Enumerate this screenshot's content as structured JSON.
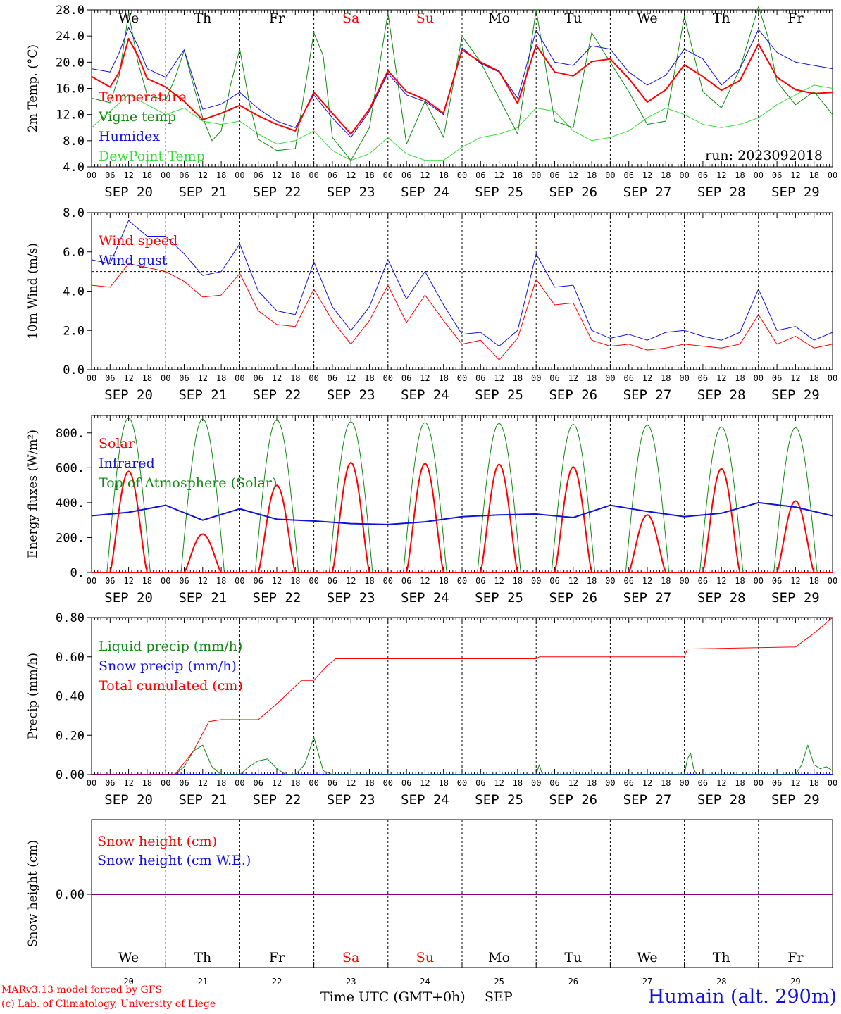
{
  "footer": {
    "credit_line1": "MARv3.13 model forced by GFS",
    "credit_line2": "(c) Lab. of Climatology, University of Liege",
    "time_label": "Time UTC (GMT+0h)",
    "month_label": "SEP",
    "station": "Humain (alt. 290m)"
  },
  "colors": {
    "red": "#ff0000",
    "dark_green": "#118811",
    "blue": "#1111dd",
    "light_green": "#33dd33",
    "purple": "#800080"
  },
  "time_axis": {
    "hour_ticks": [
      "00",
      "06",
      "12",
      "18"
    ],
    "date_labels": [
      "SEP 20",
      "SEP 21",
      "SEP 22",
      "SEP 23",
      "SEP 24",
      "SEP 25",
      "SEP 26",
      "SEP 27",
      "SEP 28",
      "SEP 29"
    ],
    "weekdays": [
      "We",
      "Th",
      "Fr",
      "Sa",
      "Su",
      "Mo",
      "Tu",
      "We",
      "Th",
      "Fr"
    ],
    "weekend_days": [
      3,
      4
    ],
    "day_numbers": [
      "20",
      "21",
      "22",
      "23",
      "24",
      "25",
      "26",
      "27",
      "28",
      "29"
    ]
  },
  "chart_data": [
    {
      "type": "line",
      "panel": "temperature",
      "ylabel": "2m Temp. (°C)",
      "ylim": [
        4,
        28
      ],
      "yticks": [
        "4.0",
        "8.0",
        "12.0",
        "16.0",
        "20.0",
        "24.0",
        "28.0"
      ],
      "run_label": "run: 2023092018",
      "x_unit": "hours since SEP 20 00 UTC",
      "series": [
        {
          "name": "Temperature",
          "color": "#ff0000",
          "width": 2,
          "x": [
            0,
            6,
            9,
            12,
            15,
            18,
            24,
            30,
            36,
            42,
            48,
            54,
            60,
            66,
            72,
            78,
            84,
            90,
            96,
            102,
            108,
            114,
            120,
            126,
            132,
            138,
            144,
            150,
            156,
            162,
            168,
            174,
            180,
            186,
            192,
            198,
            204,
            210,
            216,
            222,
            228,
            234,
            240
          ],
          "y": [
            17.8,
            16.2,
            18.5,
            23.6,
            21.0,
            17.5,
            16.2,
            14.0,
            11.2,
            12.2,
            13.4,
            11.8,
            10.5,
            9.5,
            15.4,
            12.2,
            9.0,
            12.8,
            18.7,
            15.5,
            14.3,
            12.2,
            21.9,
            20.0,
            18.6,
            13.7,
            22.6,
            18.5,
            17.9,
            20.1,
            20.5,
            17.5,
            13.9,
            15.8,
            19.6,
            17.8,
            15.7,
            17.2,
            22.8,
            17.7,
            15.8,
            15.2,
            15.4
          ]
        },
        {
          "name": "Vigne temp",
          "color": "#118811",
          "width": 1,
          "x": [
            0,
            6,
            9,
            12,
            15,
            18,
            24,
            27,
            30,
            33,
            36,
            39,
            42,
            45,
            48,
            51,
            54,
            60,
            66,
            72,
            75,
            78,
            84,
            90,
            96,
            102,
            108,
            114,
            120,
            126,
            132,
            138,
            144,
            150,
            156,
            162,
            168,
            174,
            180,
            186,
            192,
            198,
            204,
            210,
            216,
            219,
            222,
            228,
            234,
            240
          ],
          "y": [
            14.5,
            13.8,
            18.0,
            27.5,
            20.0,
            15.0,
            14.2,
            17.5,
            21.8,
            16.5,
            11.5,
            8.0,
            9.5,
            16.5,
            22.0,
            14.0,
            8.2,
            6.5,
            6.8,
            24.5,
            21.0,
            8.5,
            5.0,
            10.0,
            27.5,
            7.5,
            14.0,
            8.5,
            24.0,
            20.0,
            14.5,
            9.0,
            28.0,
            11.0,
            10.0,
            24.5,
            20.0,
            15.5,
            10.5,
            11.0,
            27.0,
            15.5,
            13.0,
            19.0,
            28.5,
            24.0,
            17.0,
            13.5,
            15.5,
            12.0
          ]
        },
        {
          "name": "Humidex",
          "color": "#1111dd",
          "width": 1,
          "x": [
            0,
            6,
            9,
            12,
            15,
            18,
            24,
            30,
            36,
            42,
            48,
            54,
            60,
            66,
            72,
            78,
            84,
            90,
            96,
            102,
            108,
            114,
            120,
            126,
            132,
            138,
            144,
            150,
            156,
            162,
            168,
            174,
            180,
            186,
            192,
            198,
            204,
            210,
            216,
            222,
            228,
            234,
            240
          ],
          "y": [
            19.0,
            18.5,
            21.5,
            25.3,
            22.5,
            19.0,
            17.7,
            21.9,
            12.8,
            13.6,
            15.4,
            12.9,
            11.0,
            10.0,
            15.0,
            11.5,
            8.5,
            12.5,
            18.3,
            15.0,
            14.0,
            12.0,
            22.2,
            19.8,
            18.5,
            14.5,
            24.9,
            20.0,
            19.5,
            22.5,
            22.0,
            18.5,
            16.5,
            18.0,
            22.0,
            20.5,
            16.5,
            19.0,
            25.0,
            21.5,
            20.0,
            19.5,
            19.0
          ]
        },
        {
          "name": "DewPoint Temp",
          "color": "#33dd33",
          "width": 1,
          "x": [
            0,
            6,
            12,
            18,
            24,
            30,
            36,
            42,
            48,
            54,
            60,
            66,
            72,
            78,
            84,
            90,
            96,
            102,
            108,
            114,
            120,
            126,
            132,
            138,
            144,
            150,
            156,
            162,
            168,
            174,
            180,
            186,
            192,
            198,
            204,
            210,
            216,
            222,
            228,
            234,
            240
          ],
          "y": [
            10.0,
            12.5,
            15.0,
            13.5,
            12.0,
            13.0,
            11.0,
            10.5,
            11.0,
            9.0,
            7.5,
            8.0,
            9.5,
            6.5,
            5.0,
            6.0,
            8.5,
            6.0,
            5.0,
            5.0,
            7.0,
            8.5,
            9.0,
            10.0,
            13.0,
            12.5,
            9.5,
            8.0,
            8.5,
            9.5,
            11.5,
            13.0,
            12.0,
            10.5,
            10.0,
            10.5,
            11.5,
            13.5,
            15.0,
            16.5,
            16.0
          ]
        }
      ]
    },
    {
      "type": "line",
      "panel": "wind",
      "ylabel": "10m Wind (m/s)",
      "ylim": [
        0,
        8
      ],
      "yticks": [
        "0.0",
        "2.0",
        "4.0",
        "6.0",
        "8.0"
      ],
      "reference_line": 5,
      "x_unit": "hours since SEP 20 00 UTC",
      "series": [
        {
          "name": "Wind speed",
          "color": "#ff0000",
          "width": 1,
          "x": [
            0,
            6,
            12,
            18,
            24,
            30,
            36,
            42,
            48,
            54,
            60,
            66,
            72,
            78,
            84,
            90,
            96,
            102,
            108,
            114,
            120,
            126,
            132,
            138,
            144,
            150,
            156,
            162,
            168,
            174,
            180,
            186,
            192,
            198,
            204,
            210,
            216,
            222,
            228,
            234,
            240
          ],
          "y": [
            4.3,
            4.2,
            5.4,
            5.2,
            5.0,
            4.5,
            3.7,
            3.8,
            4.9,
            3.0,
            2.3,
            2.2,
            4.1,
            2.5,
            1.3,
            2.5,
            4.3,
            2.4,
            3.8,
            2.5,
            1.3,
            1.5,
            0.5,
            1.6,
            4.6,
            3.3,
            3.4,
            1.5,
            1.2,
            1.3,
            1.0,
            1.1,
            1.3,
            1.2,
            1.1,
            1.3,
            2.8,
            1.3,
            1.7,
            1.1,
            1.3
          ]
        },
        {
          "name": "Wind gust",
          "color": "#1111dd",
          "width": 1,
          "x": [
            0,
            6,
            12,
            18,
            24,
            30,
            36,
            42,
            48,
            54,
            60,
            66,
            72,
            78,
            84,
            90,
            96,
            102,
            108,
            114,
            120,
            126,
            132,
            138,
            144,
            150,
            156,
            162,
            168,
            174,
            180,
            186,
            192,
            198,
            204,
            210,
            216,
            222,
            228,
            234,
            240
          ],
          "y": [
            5.6,
            5.4,
            7.6,
            6.8,
            6.8,
            5.9,
            4.8,
            5.0,
            6.4,
            4.0,
            3.0,
            2.8,
            5.5,
            3.2,
            2.0,
            3.2,
            5.6,
            3.6,
            5.0,
            3.3,
            1.8,
            1.9,
            1.2,
            2.0,
            5.9,
            4.2,
            4.3,
            2.0,
            1.6,
            1.8,
            1.5,
            1.9,
            2.0,
            1.7,
            1.5,
            1.9,
            4.1,
            2.0,
            2.2,
            1.5,
            1.9
          ]
        }
      ]
    },
    {
      "type": "line",
      "panel": "energy",
      "ylabel": "Energy fluxes (W/m²)",
      "ylim": [
        0,
        900
      ],
      "yticks": [
        "0.",
        "200.",
        "400.",
        "600.",
        "800."
      ],
      "x_unit": "hours since SEP 20 00 UTC",
      "daily_peak": {
        "Solar": [
          580,
          220,
          500,
          630,
          625,
          620,
          605,
          330,
          595,
          410
        ],
        "Top of Atmosphere (Solar)": [
          885,
          880,
          875,
          865,
          860,
          855,
          850,
          845,
          835,
          830
        ]
      },
      "series": [
        {
          "name": "Solar",
          "color": "#ff0000",
          "width": 2
        },
        {
          "name": "Infrared",
          "color": "#1111dd",
          "width": 2,
          "x": [
            0,
            12,
            24,
            36,
            48,
            60,
            72,
            84,
            96,
            108,
            120,
            132,
            144,
            156,
            168,
            180,
            192,
            204,
            216,
            228,
            240
          ],
          "y": [
            325,
            345,
            385,
            300,
            365,
            305,
            295,
            280,
            275,
            290,
            320,
            330,
            335,
            315,
            385,
            350,
            320,
            340,
            400,
            375,
            325
          ]
        },
        {
          "name": "Top of Atmosphere (Solar)",
          "color": "#118811",
          "width": 1
        }
      ]
    },
    {
      "type": "line",
      "panel": "precip",
      "ylabel": "Precip (mm/h)",
      "ylim": [
        0,
        0.8
      ],
      "yticks": [
        "0.00",
        "0.20",
        "0.40",
        "0.60",
        "0.80"
      ],
      "x_unit": "hours since SEP 20 00 UTC",
      "series": [
        {
          "name": "Liquid precip (mm/h)",
          "color": "#118811",
          "width": 1,
          "x": [
            0,
            27,
            30,
            33,
            36,
            39,
            42,
            48,
            51,
            54,
            57,
            60,
            63,
            66,
            69,
            72,
            75,
            78,
            144,
            145,
            146,
            192,
            193,
            194,
            195,
            196,
            228,
            230,
            232,
            234,
            236,
            238,
            240
          ],
          "y": [
            0,
            0,
            0.04,
            0.12,
            0.15,
            0.04,
            0,
            0,
            0.04,
            0.07,
            0.08,
            0.03,
            0,
            0,
            0.05,
            0.19,
            0.02,
            0,
            0,
            0.05,
            0,
            0,
            0.08,
            0.11,
            0.03,
            0,
            0,
            0.05,
            0.15,
            0.05,
            0.03,
            0.04,
            0.02
          ]
        },
        {
          "name": "Snow precip (mm/h)",
          "color": "#1111dd",
          "width": 1,
          "x": [
            0,
            240
          ],
          "y": [
            0,
            0
          ]
        },
        {
          "name": "Total cumulated (cm)",
          "color": "#ff0000",
          "width": 1,
          "x": [
            0,
            27,
            33,
            38,
            42,
            54,
            60,
            66,
            68,
            72,
            76,
            79,
            144,
            145,
            192,
            193,
            228,
            234,
            240
          ],
          "y": [
            0,
            0,
            0.12,
            0.27,
            0.28,
            0.28,
            0.36,
            0.45,
            0.48,
            0.48,
            0.55,
            0.59,
            0.59,
            0.6,
            0.6,
            0.64,
            0.65,
            0.72,
            0.8
          ]
        }
      ]
    },
    {
      "type": "line",
      "panel": "snow",
      "ylabel": "Snow height (cm)",
      "yticks": [
        "0.00"
      ],
      "x_unit": "hours since SEP 20 00 UTC",
      "series": [
        {
          "name": "Snow height (cm)",
          "color": "#ff0000",
          "width": 1,
          "x": [
            0,
            240
          ],
          "y": [
            0,
            0
          ]
        },
        {
          "name": "Snow height (cm W.E.)",
          "color": "#1111dd",
          "width": 1,
          "x": [
            0,
            240
          ],
          "y": [
            0,
            0
          ]
        }
      ]
    }
  ]
}
